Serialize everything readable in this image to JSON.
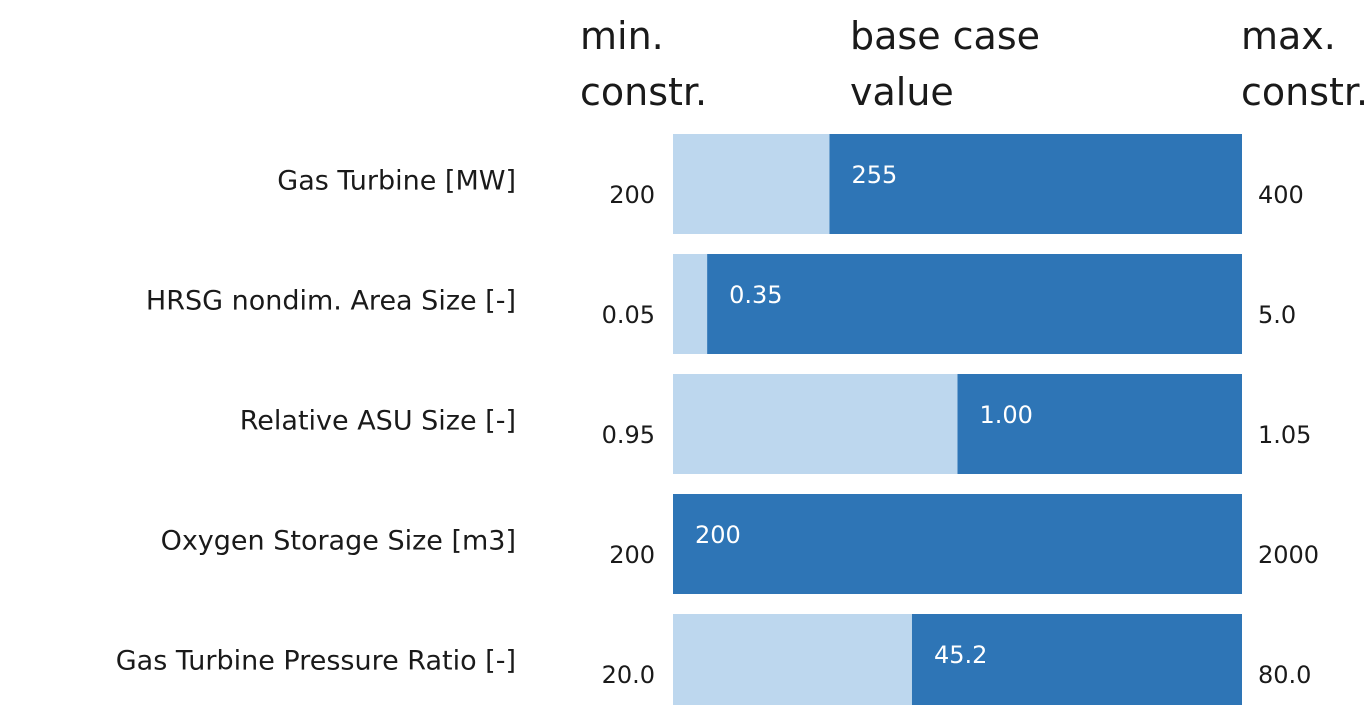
{
  "column_headers": {
    "min": "min.\nconstr.",
    "base": "base case\nvalue",
    "max": "max.\nconstr."
  },
  "colors": {
    "range_fill": "#bdd7ee",
    "base_fill": "#2e75b6",
    "value_text": "#ffffff"
  },
  "chart_data": {
    "type": "bar",
    "orientation": "horizontal",
    "stacked": true,
    "categories": [
      "Gas Turbine [MW]",
      "HRSG nondim. Area Size [-]",
      "Relative ASU Size [-]",
      "Oxygen Storage Size [m3]",
      "Gas Turbine Pressure Ratio [-]"
    ],
    "min_labels": [
      "200",
      "0.05",
      "0.95",
      "200",
      "20.0"
    ],
    "base_labels": [
      "255",
      "0.35",
      "1.00",
      "200",
      "45.2"
    ],
    "max_labels": [
      "400",
      "5.0",
      "1.05",
      "2000",
      "80.0"
    ],
    "min_values": [
      200,
      0.05,
      0.95,
      200,
      20.0
    ],
    "base_values": [
      255,
      0.35,
      1.0,
      200,
      45.2
    ],
    "max_values": [
      400,
      5.0,
      1.05,
      2000,
      80.0
    ],
    "base_fraction_of_range": [
      0.275,
      0.06,
      0.5,
      0.0,
      0.42
    ],
    "legend": false,
    "grid": false
  }
}
